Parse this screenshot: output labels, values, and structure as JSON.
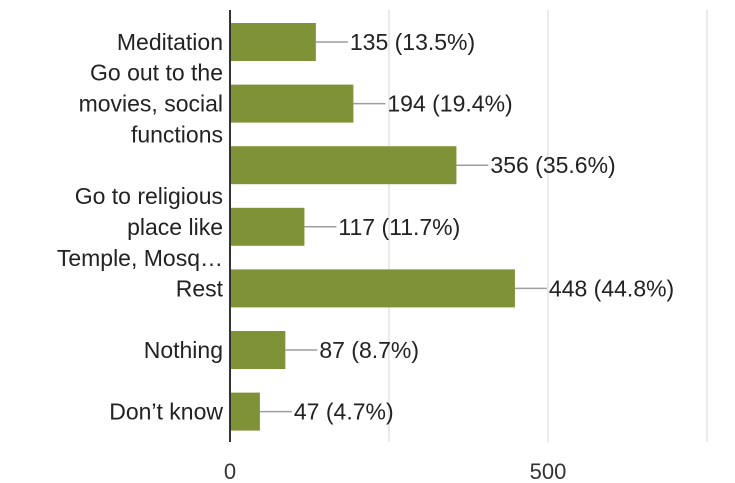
{
  "chart_data": {
    "type": "bar",
    "orientation": "horizontal",
    "categories": [
      "Meditation",
      "Go out to the movies, social functions",
      "",
      "Go to religious place like Temple, Mosq…",
      "Rest",
      "Nothing",
      "Don’t know"
    ],
    "category_label_lines": [
      [
        "Meditation"
      ],
      [
        "Go out to the",
        "movies, social",
        "functions"
      ],
      [],
      [
        "Go to religious",
        "place like",
        "Temple, Mosq…"
      ],
      [
        "Rest"
      ],
      [
        "Nothing"
      ],
      [
        "Don’t know"
      ]
    ],
    "values": [
      135,
      194,
      356,
      117,
      448,
      87,
      47
    ],
    "data_labels": [
      "135 (13.5%)",
      "194 (19.4%)",
      "356 (35.6%)",
      "117 (11.7%)",
      "448 (44.8%)",
      "87 (8.7%)",
      "47 (4.7%)"
    ],
    "x_ticks": [
      0,
      500
    ],
    "x_tick_labels": [
      "0",
      "500"
    ],
    "xlim": [
      0,
      800
    ],
    "grid": true,
    "legend": "none",
    "colors": {
      "bar": "#7f9237",
      "axis": "#333333",
      "grid": "#e3e3e3",
      "leader": "#9e9e9e"
    }
  }
}
